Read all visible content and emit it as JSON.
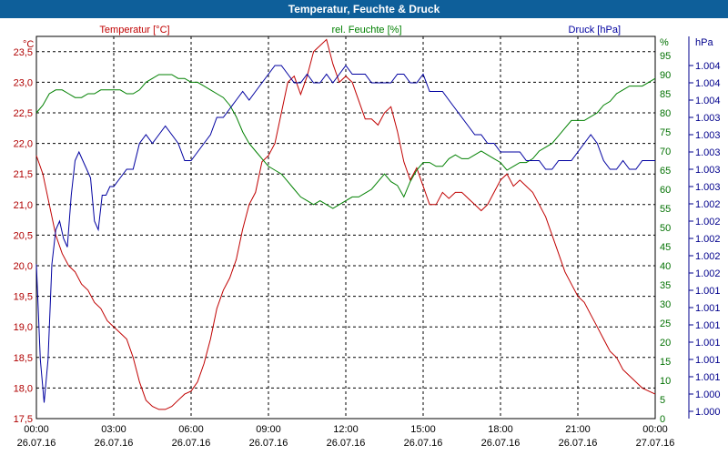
{
  "title": "Temperatur, Feuchte & Druck",
  "chart_data": {
    "type": "line",
    "grid": true,
    "x_ticks": [
      {
        "time": "00:00",
        "date": "26.07.16"
      },
      {
        "time": "03:00",
        "date": "26.07.16"
      },
      {
        "time": "06:00",
        "date": "26.07.16"
      },
      {
        "time": "09:00",
        "date": "26.07.16"
      },
      {
        "time": "12:00",
        "date": "26.07.16"
      },
      {
        "time": "15:00",
        "date": "26.07.16"
      },
      {
        "time": "18:00",
        "date": "26.07.16"
      },
      {
        "time": "21:00",
        "date": "26.07.16"
      },
      {
        "time": "00:00",
        "date": "27.07.16"
      }
    ],
    "axes": {
      "temperature": {
        "unit_label": "°C",
        "range": [
          17.5,
          23.75
        ],
        "ticks": [
          "17,5",
          "18,0",
          "18,5",
          "19,0",
          "19,5",
          "20,0",
          "20,5",
          "21,0",
          "21,5",
          "22,0",
          "22,5",
          "23,0",
          "23,5"
        ],
        "color": "#b00000"
      },
      "humidity": {
        "unit_label": "%",
        "range": [
          0,
          100
        ],
        "ticks": [
          "0",
          "5",
          "10",
          "15",
          "20",
          "25",
          "30",
          "35",
          "40",
          "45",
          "50",
          "55",
          "60",
          "65",
          "70",
          "75",
          "80",
          "85",
          "90",
          "95"
        ],
        "color": "#007000"
      },
      "pressure": {
        "unit_label": "hPa",
        "ticks": [
          "1.000",
          "1.000",
          "1.001",
          "1.001",
          "1.001",
          "1.001",
          "1.001",
          "1.001",
          "1.002",
          "1.002",
          "1.002",
          "1.002",
          "1.002",
          "1.003",
          "1.003",
          "1.003",
          "1.003",
          "1.003",
          "1.004",
          "1.004",
          "1.004"
        ],
        "color": "#00008c"
      }
    },
    "series": [
      {
        "name": "Temperatur [°C]",
        "axis": "temperature",
        "color": "#c00000",
        "x_hours": [
          0,
          0.25,
          0.5,
          0.75,
          1,
          1.25,
          1.5,
          1.75,
          2,
          2.25,
          2.5,
          2.75,
          3,
          3.25,
          3.5,
          3.75,
          4,
          4.25,
          4.5,
          4.75,
          5,
          5.25,
          5.5,
          5.75,
          6,
          6.25,
          6.5,
          6.75,
          7,
          7.25,
          7.5,
          7.75,
          8,
          8.25,
          8.5,
          8.75,
          9,
          9.25,
          9.5,
          9.75,
          10,
          10.25,
          10.5,
          10.75,
          11,
          11.25,
          11.5,
          11.75,
          12,
          12.25,
          12.5,
          12.75,
          13,
          13.25,
          13.5,
          13.75,
          14,
          14.25,
          14.5,
          14.75,
          15,
          15.25,
          15.5,
          15.75,
          16,
          16.25,
          16.5,
          16.75,
          17,
          17.25,
          17.5,
          17.75,
          18,
          18.25,
          18.5,
          18.75,
          19,
          19.25,
          19.5,
          19.75,
          20,
          20.25,
          20.5,
          20.75,
          21,
          21.25,
          21.5,
          21.75,
          22,
          22.25,
          22.5,
          22.75,
          23,
          23.25,
          23.5,
          23.75,
          24
        ],
        "values": [
          21.8,
          21.5,
          21.0,
          20.5,
          20.2,
          20.0,
          19.9,
          19.7,
          19.6,
          19.4,
          19.3,
          19.1,
          19.0,
          18.9,
          18.8,
          18.5,
          18.1,
          17.8,
          17.7,
          17.65,
          17.65,
          17.7,
          17.8,
          17.9,
          17.95,
          18.1,
          18.4,
          18.8,
          19.3,
          19.6,
          19.8,
          20.1,
          20.6,
          21.0,
          21.2,
          21.7,
          21.8,
          22.0,
          22.5,
          23.0,
          23.1,
          22.8,
          23.1,
          23.5,
          23.6,
          23.7,
          23.3,
          23.0,
          23.1,
          23.0,
          22.7,
          22.4,
          22.4,
          22.3,
          22.5,
          22.6,
          22.2,
          21.7,
          21.4,
          21.6,
          21.3,
          21.0,
          21.0,
          21.2,
          21.1,
          21.2,
          21.2,
          21.1,
          21.0,
          20.9,
          21.0,
          21.2,
          21.4,
          21.5,
          21.3,
          21.4,
          21.3,
          21.2,
          21.0,
          20.8,
          20.5,
          20.2,
          19.9,
          19.7,
          19.5,
          19.4,
          19.2,
          19.0,
          18.8,
          18.6,
          18.5,
          18.3,
          18.2,
          18.1,
          18.0,
          17.95,
          17.9
        ]
      },
      {
        "name": "rel. Feuchte [%]",
        "axis": "humidity",
        "color": "#008000",
        "x_hours": [
          0,
          0.25,
          0.5,
          0.75,
          1,
          1.25,
          1.5,
          1.75,
          2,
          2.25,
          2.5,
          2.75,
          3,
          3.25,
          3.5,
          3.75,
          4,
          4.25,
          4.5,
          4.75,
          5,
          5.25,
          5.5,
          5.75,
          6,
          6.25,
          6.5,
          6.75,
          7,
          7.25,
          7.5,
          7.75,
          8,
          8.25,
          8.5,
          8.75,
          9,
          9.25,
          9.5,
          9.75,
          10,
          10.25,
          10.5,
          10.75,
          11,
          11.25,
          11.5,
          11.75,
          12,
          12.25,
          12.5,
          12.75,
          13,
          13.25,
          13.5,
          13.75,
          14,
          14.25,
          14.5,
          14.75,
          15,
          15.25,
          15.5,
          15.75,
          16,
          16.25,
          16.5,
          16.75,
          17,
          17.25,
          17.5,
          17.75,
          18,
          18.25,
          18.5,
          18.75,
          19,
          19.25,
          19.5,
          19.75,
          20,
          20.25,
          20.5,
          20.75,
          21,
          21.25,
          21.5,
          21.75,
          22,
          22.25,
          22.5,
          22.75,
          23,
          23.25,
          23.5,
          23.75,
          24
        ],
        "values": [
          80,
          82,
          85,
          86,
          86,
          85,
          84,
          84,
          85,
          85,
          86,
          86,
          86,
          86,
          85,
          85,
          86,
          88,
          89,
          90,
          90,
          90,
          89,
          89,
          88,
          88,
          87,
          86,
          85,
          84,
          82,
          79,
          75,
          72,
          70,
          68,
          66,
          65,
          64,
          62,
          60,
          58,
          57,
          56,
          57,
          56,
          55,
          56,
          57,
          58,
          58,
          59,
          60,
          62,
          64,
          62,
          61,
          58,
          62,
          65,
          67,
          67,
          66,
          66,
          68,
          69,
          68,
          68,
          69,
          70,
          69,
          68,
          67,
          65,
          66,
          67,
          67,
          68,
          70,
          71,
          72,
          74,
          76,
          78,
          78,
          78,
          79,
          80,
          82,
          83,
          85,
          86,
          87,
          87,
          87,
          88,
          89
        ]
      },
      {
        "name": "Druck [hPa]",
        "axis": "pressure",
        "color": "#0000a0",
        "x_hours": [
          0,
          0.15,
          0.3,
          0.45,
          0.6,
          0.75,
          0.9,
          1.05,
          1.2,
          1.35,
          1.5,
          1.65,
          1.8,
          1.95,
          2.1,
          2.25,
          2.4,
          2.55,
          2.7,
          2.85,
          3,
          3.25,
          3.5,
          3.75,
          4,
          4.25,
          4.5,
          4.75,
          5,
          5.25,
          5.5,
          5.75,
          6,
          6.25,
          6.5,
          6.75,
          7,
          7.25,
          7.5,
          7.75,
          8,
          8.25,
          8.5,
          8.75,
          9,
          9.25,
          9.5,
          9.75,
          10,
          10.25,
          10.5,
          10.75,
          11,
          11.25,
          11.5,
          11.75,
          12,
          12.25,
          12.5,
          12.75,
          13,
          13.25,
          13.5,
          13.75,
          14,
          14.25,
          14.5,
          14.75,
          15,
          15.25,
          15.5,
          15.75,
          16,
          16.25,
          16.5,
          16.75,
          17,
          17.25,
          17.5,
          17.75,
          18,
          18.25,
          18.5,
          18.75,
          19,
          19.25,
          19.5,
          19.75,
          20,
          20.25,
          20.5,
          20.75,
          21,
          21.25,
          21.5,
          21.75,
          22,
          22.25,
          22.5,
          22.75,
          23,
          23.25,
          23.5,
          23.75,
          24
        ],
        "values": [
          8.5,
          3.0,
          0.5,
          3.0,
          8.5,
          10.5,
          11.0,
          10.0,
          9.5,
          12.5,
          14.5,
          15.0,
          14.5,
          14.0,
          13.5,
          11.0,
          10.5,
          12.5,
          12.5,
          13.0,
          13.0,
          13.5,
          14.0,
          14.0,
          15.5,
          16.0,
          15.5,
          16.0,
          16.5,
          16.0,
          15.5,
          14.5,
          14.5,
          15.0,
          15.5,
          16.0,
          17.0,
          17.0,
          17.5,
          18.0,
          18.5,
          18.0,
          18.5,
          19.0,
          19.5,
          20.0,
          20.0,
          19.5,
          19.0,
          19.0,
          19.5,
          19.0,
          19.0,
          19.5,
          19.0,
          19.5,
          20.0,
          19.5,
          19.5,
          19.5,
          19.0,
          19.0,
          19.0,
          19.0,
          19.5,
          19.5,
          19.0,
          19.0,
          19.5,
          18.5,
          18.5,
          18.5,
          18.0,
          17.5,
          17.0,
          16.5,
          16.0,
          16.0,
          15.5,
          15.5,
          15.0,
          15.0,
          15.0,
          15.0,
          14.5,
          14.5,
          14.5,
          14.0,
          14.0,
          14.5,
          14.5,
          14.5,
          15.0,
          15.5,
          16.0,
          15.5,
          14.5,
          14.0,
          14.0,
          14.5,
          14.0,
          14.0,
          14.5,
          14.5,
          14.5
        ]
      }
    ]
  }
}
